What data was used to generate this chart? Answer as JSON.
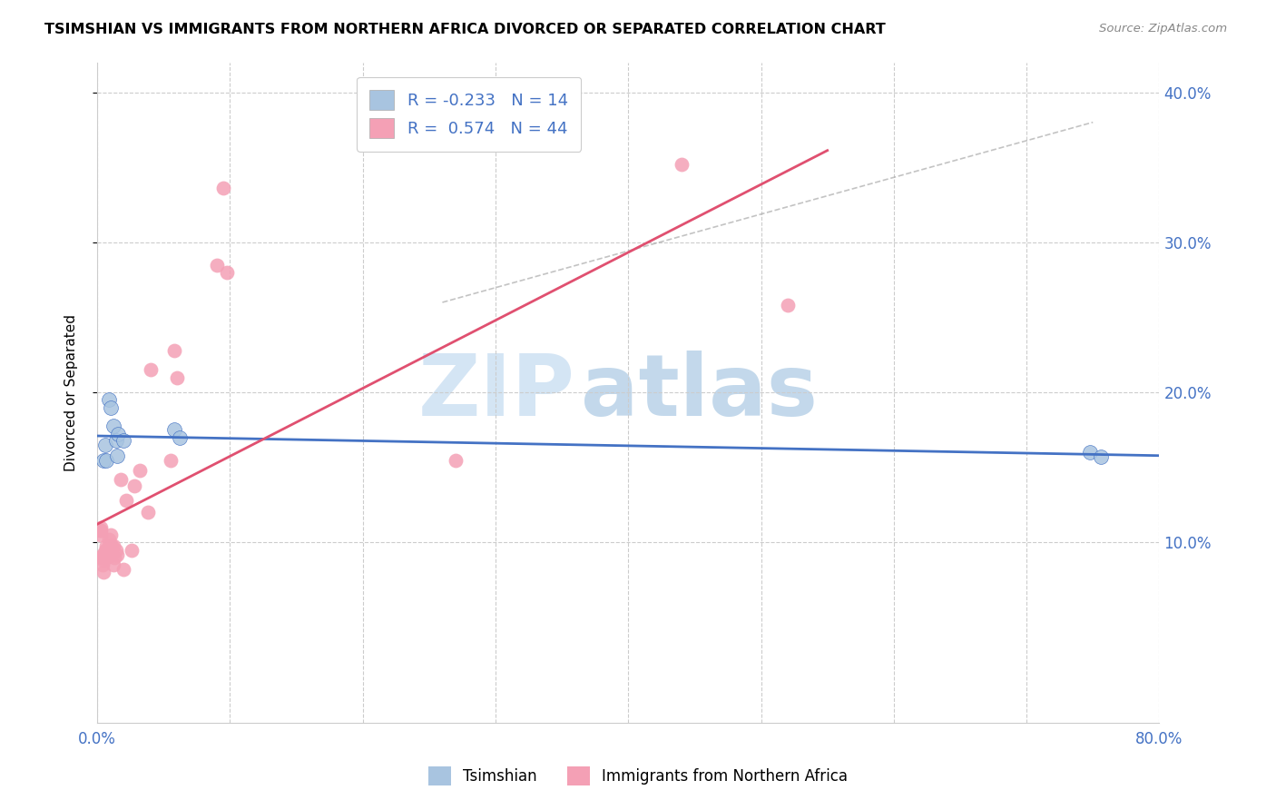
{
  "title": "TSIMSHIAN VS IMMIGRANTS FROM NORTHERN AFRICA DIVORCED OR SEPARATED CORRELATION CHART",
  "source": "Source: ZipAtlas.com",
  "ylabel": "Divorced or Separated",
  "xlim": [
    0,
    0.8
  ],
  "ylim": [
    -0.02,
    0.42
  ],
  "plot_ylim": [
    0,
    0.4
  ],
  "xticks": [
    0.0,
    0.1,
    0.2,
    0.3,
    0.4,
    0.5,
    0.6,
    0.7,
    0.8
  ],
  "xtick_labels": [
    "0.0%",
    "",
    "",
    "",
    "",
    "",
    "",
    "",
    "80.0%"
  ],
  "ytick_positions": [
    0.1,
    0.2,
    0.3,
    0.4
  ],
  "ytick_labels": [
    "10.0%",
    "20.0%",
    "30.0%",
    "40.0%"
  ],
  "legend_label1": "Tsimshian",
  "legend_label2": "Immigrants from Northern Africa",
  "R1": -0.233,
  "N1": 14,
  "R2": 0.574,
  "N2": 44,
  "color1": "#a8c4e0",
  "color2": "#f4a0b5",
  "line_color1": "#4472c4",
  "line_color2": "#e05070",
  "watermark_zip": "ZIP",
  "watermark_atlas": "atlas",
  "tsimshian_x": [
    0.005,
    0.006,
    0.007,
    0.009,
    0.01,
    0.012,
    0.014,
    0.015,
    0.016,
    0.02,
    0.058,
    0.062,
    0.748,
    0.756
  ],
  "tsimshian_y": [
    0.155,
    0.165,
    0.155,
    0.195,
    0.19,
    0.178,
    0.168,
    0.158,
    0.172,
    0.168,
    0.175,
    0.17,
    0.16,
    0.157
  ],
  "northern_africa_x": [
    0.002,
    0.003,
    0.003,
    0.003,
    0.004,
    0.004,
    0.004,
    0.005,
    0.005,
    0.005,
    0.006,
    0.006,
    0.006,
    0.007,
    0.007,
    0.007,
    0.008,
    0.009,
    0.009,
    0.01,
    0.011,
    0.011,
    0.012,
    0.012,
    0.013,
    0.014,
    0.015,
    0.018,
    0.02,
    0.022,
    0.026,
    0.028,
    0.032,
    0.038,
    0.04,
    0.055,
    0.058,
    0.06,
    0.09,
    0.095,
    0.098,
    0.27,
    0.44,
    0.52
  ],
  "northern_africa_y": [
    0.108,
    0.105,
    0.108,
    0.11,
    0.085,
    0.09,
    0.092,
    0.08,
    0.088,
    0.092,
    0.09,
    0.092,
    0.095,
    0.09,
    0.095,
    0.098,
    0.092,
    0.098,
    0.102,
    0.105,
    0.092,
    0.098,
    0.085,
    0.098,
    0.09,
    0.095,
    0.092,
    0.142,
    0.082,
    0.128,
    0.095,
    0.138,
    0.148,
    0.12,
    0.215,
    0.155,
    0.228,
    0.21,
    0.285,
    0.336,
    0.28,
    0.155,
    0.352,
    0.258
  ],
  "diag_line_x": [
    0.26,
    0.75
  ],
  "diag_line_y": [
    0.26,
    0.38
  ],
  "pink_line_x_start": 0.0,
  "pink_line_x_end": 0.55,
  "blue_line_x_start": 0.0,
  "blue_line_x_end": 0.8
}
